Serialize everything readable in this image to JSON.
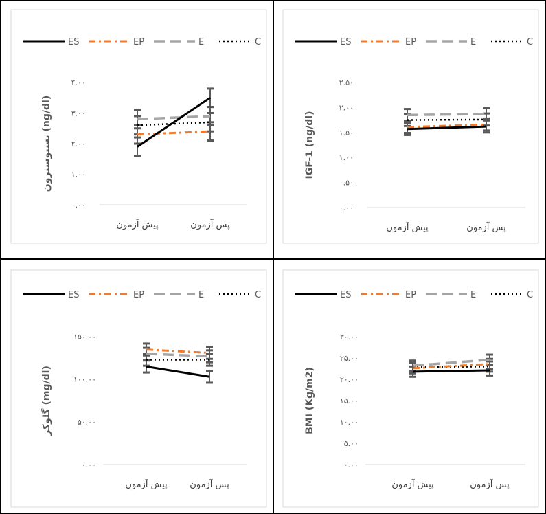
{
  "legend_labels": [
    "ES",
    "EP",
    "E",
    "C"
  ],
  "series_colors": {
    "ES": "#000000",
    "EP": "#ed7d31",
    "E": "#a5a5a5",
    "C": "#000000"
  },
  "error_bar_color": "#595959",
  "chart_data": [
    {
      "type": "line",
      "categories": [
        "پیش آزمون",
        "پس آزمون"
      ],
      "ylabel": "تستوسترون (ng/dl)",
      "ylim": [
        0,
        4
      ],
      "yticks": [
        "۰.۰۰",
        "۱.۰۰",
        "۲.۰۰",
        "۳.۰۰",
        "۴.۰۰"
      ],
      "legend": "top",
      "grid": false,
      "series": [
        {
          "name": "ES",
          "values": [
            1.9,
            3.5
          ]
        },
        {
          "name": "EP",
          "values": [
            2.3,
            2.4
          ]
        },
        {
          "name": "E",
          "values": [
            2.8,
            2.9
          ]
        },
        {
          "name": "C",
          "values": [
            2.6,
            2.7
          ]
        }
      ],
      "error": 0.3
    },
    {
      "type": "line",
      "categories": [
        "پیش آزمون",
        "پس آزمون"
      ],
      "ylabel": "IGF-1 (ng/dl)",
      "ylim": [
        0,
        2.5
      ],
      "yticks": [
        "۰.۰۰",
        "۰.۵۰",
        "۱.۰۰",
        "۱.۵۰",
        "۲.۰۰",
        "۲.۵۰"
      ],
      "legend": "top",
      "grid": false,
      "series": [
        {
          "name": "ES",
          "values": [
            1.57,
            1.62
          ]
        },
        {
          "name": "EP",
          "values": [
            1.61,
            1.66
          ]
        },
        {
          "name": "E",
          "values": [
            1.85,
            1.87
          ]
        },
        {
          "name": "C",
          "values": [
            1.75,
            1.76
          ]
        }
      ],
      "error": 0.12
    },
    {
      "type": "line",
      "categories": [
        "پیش آزمون",
        "پس آزمون"
      ],
      "ylabel": "گلوکز (mg/dl)",
      "ylim": [
        0,
        150
      ],
      "yticks": [
        "۰.۰۰",
        "۵۰.۰۰",
        "۱۰۰.۰۰",
        "۱۵۰.۰۰"
      ],
      "legend": "top",
      "grid": false,
      "series": [
        {
          "name": "ES",
          "values": [
            115,
            103
          ]
        },
        {
          "name": "EP",
          "values": [
            135,
            131
          ]
        },
        {
          "name": "E",
          "values": [
            130,
            127
          ]
        },
        {
          "name": "C",
          "values": [
            123,
            123
          ]
        }
      ],
      "error": 7
    },
    {
      "type": "line",
      "categories": [
        "پیش آزمون",
        "پس آزمون"
      ],
      "ylabel": "BMI (Kg/m2)",
      "ylim": [
        0,
        30
      ],
      "yticks": [
        "۰.۰۰",
        "۵.۰۰",
        "۱۰.۰۰",
        "۱۵.۰۰",
        "۲۰.۰۰",
        "۲۵.۰۰",
        "۳۰.۰۰"
      ],
      "legend": "top",
      "grid": false,
      "series": [
        {
          "name": "ES",
          "values": [
            21.8,
            22.1
          ]
        },
        {
          "name": "EP",
          "values": [
            22.6,
            23.6
          ]
        },
        {
          "name": "E",
          "values": [
            23.2,
            24.6
          ]
        },
        {
          "name": "C",
          "values": [
            22.9,
            23.0
          ]
        }
      ],
      "error": 1.2
    }
  ]
}
